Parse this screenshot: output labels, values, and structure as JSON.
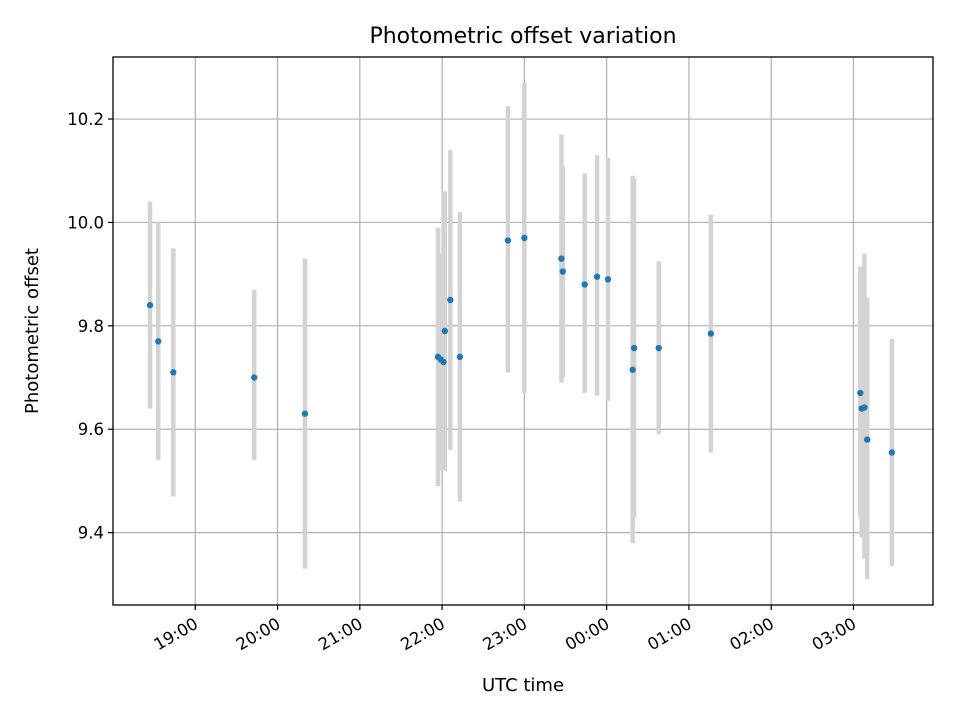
{
  "chart_data": {
    "type": "scatter",
    "title": "Photometric offset variation",
    "xlabel": "UTC time",
    "ylabel": "Photometric offset",
    "xlim": [
      "18:00",
      "03:58"
    ],
    "ylim": [
      9.26,
      10.32
    ],
    "grid": true,
    "x_ticks": [
      "19:00",
      "20:00",
      "21:00",
      "22:00",
      "23:00",
      "00:00",
      "01:00",
      "02:00",
      "03:00"
    ],
    "y_ticks": [
      9.4,
      9.6,
      9.8,
      10.0,
      10.2
    ],
    "errorbar_color": "#d3d3d3",
    "point_color": "#1f77b4",
    "points": [
      {
        "time": "18:27",
        "y": 9.84,
        "ylow": 9.64,
        "yhigh": 10.04
      },
      {
        "time": "18:33",
        "y": 9.77,
        "ylow": 9.54,
        "yhigh": 10.0
      },
      {
        "time": "18:44",
        "y": 9.71,
        "ylow": 9.47,
        "yhigh": 9.95
      },
      {
        "time": "19:43",
        "y": 9.7,
        "ylow": 9.54,
        "yhigh": 9.87
      },
      {
        "time": "20:20",
        "y": 9.63,
        "ylow": 9.33,
        "yhigh": 9.93
      },
      {
        "time": "21:57",
        "y": 9.74,
        "ylow": 9.49,
        "yhigh": 9.99
      },
      {
        "time": "21:59",
        "y": 9.735,
        "ylow": 9.52,
        "yhigh": 9.94
      },
      {
        "time": "22:01",
        "y": 9.73,
        "ylow": 9.52,
        "yhigh": 10.06
      },
      {
        "time": "22:02",
        "y": 9.79,
        "ylow": 9.52,
        "yhigh": 10.06
      },
      {
        "time": "22:06",
        "y": 9.85,
        "ylow": 9.56,
        "yhigh": 10.14
      },
      {
        "time": "22:13",
        "y": 9.74,
        "ylow": 9.46,
        "yhigh": 10.02
      },
      {
        "time": "22:48",
        "y": 9.965,
        "ylow": 9.71,
        "yhigh": 10.225
      },
      {
        "time": "23:00",
        "y": 9.97,
        "ylow": 9.67,
        "yhigh": 10.27
      },
      {
        "time": "23:27",
        "y": 9.93,
        "ylow": 9.69,
        "yhigh": 10.17
      },
      {
        "time": "23:28",
        "y": 9.905,
        "ylow": 9.7,
        "yhigh": 10.11
      },
      {
        "time": "23:44",
        "y": 9.88,
        "ylow": 9.67,
        "yhigh": 10.095
      },
      {
        "time": "23:53",
        "y": 9.895,
        "ylow": 9.665,
        "yhigh": 10.13
      },
      {
        "time": "00:01",
        "y": 9.89,
        "ylow": 9.655,
        "yhigh": 10.125
      },
      {
        "time": "00:19",
        "y": 9.715,
        "ylow": 9.38,
        "yhigh": 10.09
      },
      {
        "time": "00:20",
        "y": 9.757,
        "ylow": 9.43,
        "yhigh": 10.085
      },
      {
        "time": "00:38",
        "y": 9.757,
        "ylow": 9.59,
        "yhigh": 9.925
      },
      {
        "time": "01:16",
        "y": 9.785,
        "ylow": 9.555,
        "yhigh": 10.015
      },
      {
        "time": "03:05",
        "y": 9.67,
        "ylow": 9.43,
        "yhigh": 9.915
      },
      {
        "time": "03:06",
        "y": 9.64,
        "ylow": 9.39,
        "yhigh": 9.9
      },
      {
        "time": "03:08",
        "y": 9.642,
        "ylow": 9.35,
        "yhigh": 9.94
      },
      {
        "time": "03:10",
        "y": 9.58,
        "ylow": 9.31,
        "yhigh": 9.855
      },
      {
        "time": "03:28",
        "y": 9.555,
        "ylow": 9.335,
        "yhigh": 9.775
      }
    ]
  }
}
